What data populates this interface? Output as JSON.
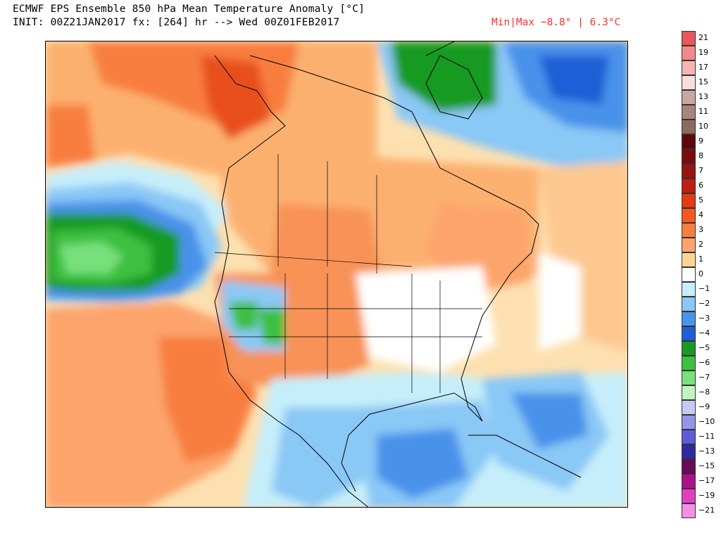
{
  "header": {
    "title_line1": "ECMWF EPS Ensemble 850 hPa Mean Temperature Anomaly [°C]",
    "title_line2": "INIT: 00Z21JAN2017 fx: [264] hr --> Wed 00Z01FEB2017",
    "minmax": "Min|Max −8.8° | 6.3°C"
  },
  "map": {
    "region": "North America",
    "variable": "850 hPa mean temperature anomaly",
    "units": "°C"
  },
  "colorbar": {
    "levels": [
      {
        "label": "21",
        "color": "#e8565a"
      },
      {
        "label": "19",
        "color": "#f08a8a"
      },
      {
        "label": "17",
        "color": "#f6b4b4"
      },
      {
        "label": "15",
        "color": "#fadede"
      },
      {
        "label": "13",
        "color": "#c8a8a0"
      },
      {
        "label": "11",
        "color": "#a8867c"
      },
      {
        "label": "10",
        "color": "#8c6a60"
      },
      {
        "label": "9",
        "color": "#600808"
      },
      {
        "label": "8",
        "color": "#7c0c0c"
      },
      {
        "label": "7",
        "color": "#981410"
      },
      {
        "label": "6",
        "color": "#bc2010"
      },
      {
        "label": "5",
        "color": "#e03c10"
      },
      {
        "label": "4",
        "color": "#f45a20"
      },
      {
        "label": "3",
        "color": "#f87e40"
      },
      {
        "label": "2",
        "color": "#fca46c"
      },
      {
        "label": "1",
        "color": "#fed494"
      },
      {
        "label": "0",
        "color": "#ffffff"
      },
      {
        "label": "−1",
        "color": "#c6eefa"
      },
      {
        "label": "−2",
        "color": "#8ac8f6"
      },
      {
        "label": "−3",
        "color": "#4a92ea"
      },
      {
        "label": "−4",
        "color": "#1e5ed6"
      },
      {
        "label": "−5",
        "color": "#169a22"
      },
      {
        "label": "−6",
        "color": "#3cc040"
      },
      {
        "label": "−7",
        "color": "#78e07c"
      },
      {
        "label": "−8",
        "color": "#c0f4c0"
      },
      {
        "label": "−9",
        "color": "#c8c8f4"
      },
      {
        "label": "−10",
        "color": "#9494e8"
      },
      {
        "label": "−11",
        "color": "#5c5cd8"
      },
      {
        "label": "−13",
        "color": "#2c2ca0"
      },
      {
        "label": "−15",
        "color": "#6a0a5a"
      },
      {
        "label": "−17",
        "color": "#b0108c"
      },
      {
        "label": "−19",
        "color": "#e040c0"
      },
      {
        "label": "−21",
        "color": "#f490e4"
      }
    ]
  }
}
